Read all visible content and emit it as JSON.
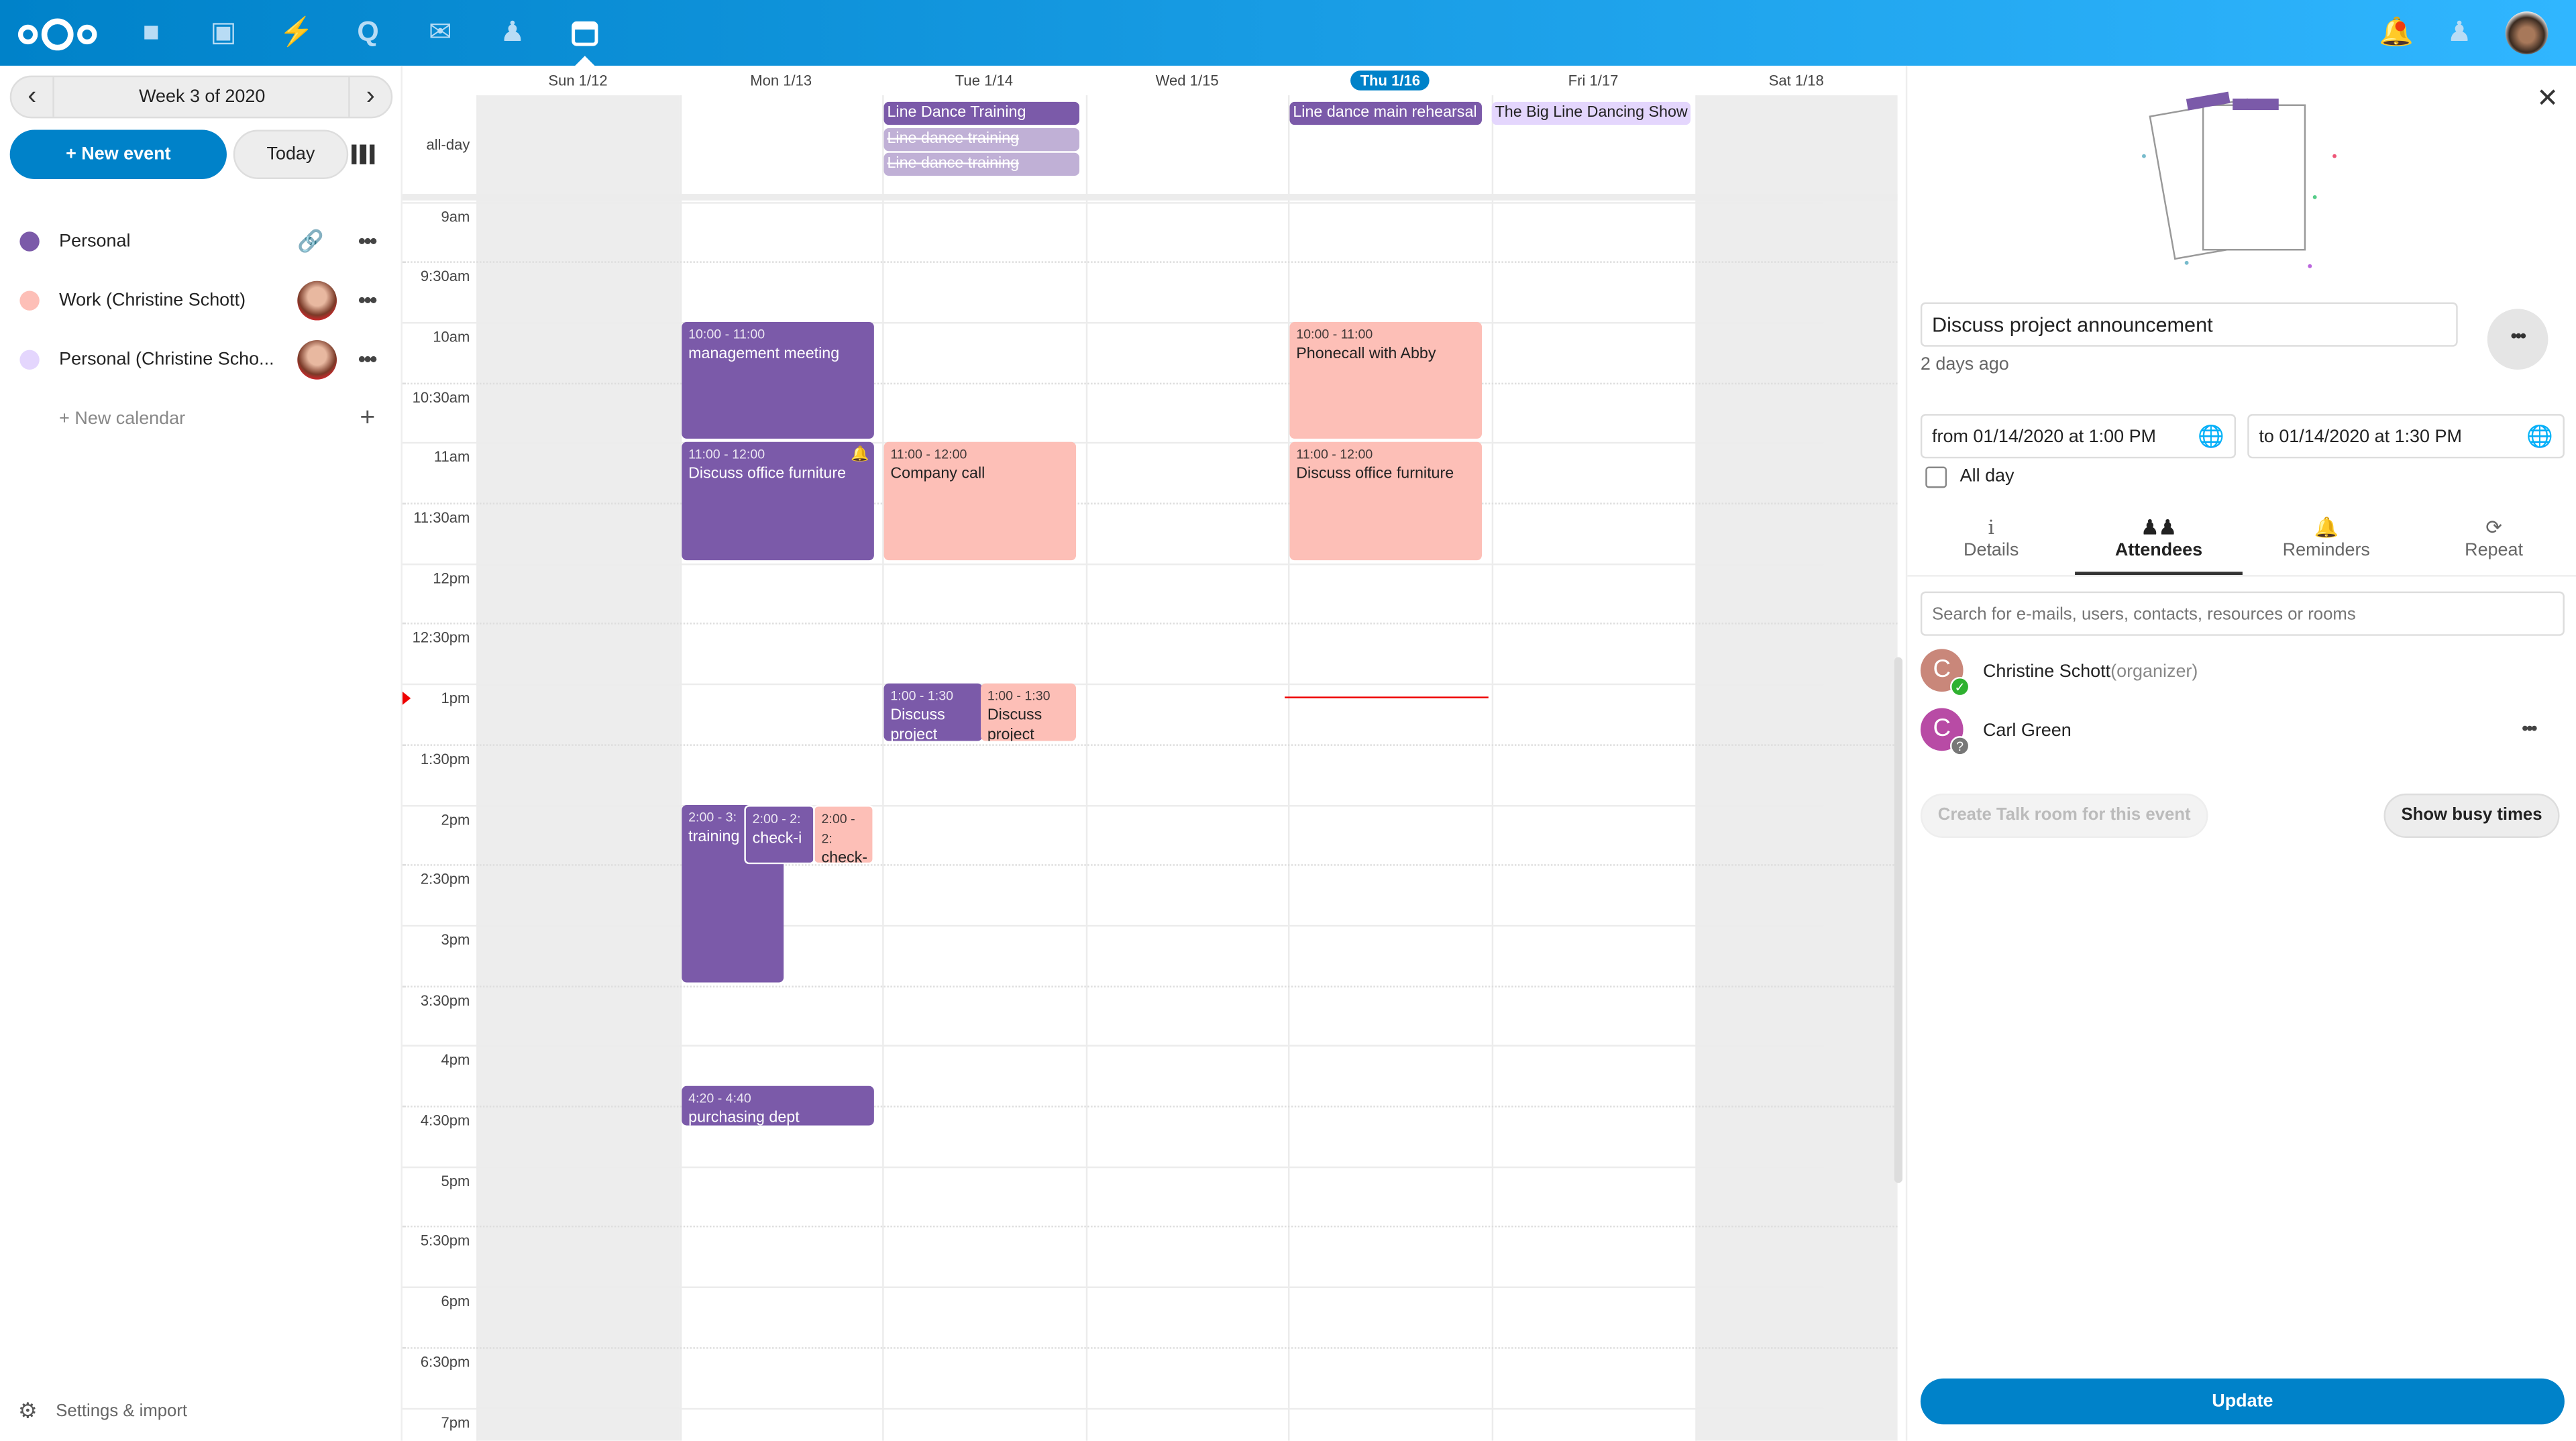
{
  "topbar": {
    "apps": [
      "files-icon",
      "photos-icon",
      "activity-icon",
      "talk-icon",
      "mail-icon",
      "contacts-icon",
      "calendar-icon"
    ],
    "brand_color": "#0082c9"
  },
  "sidebar": {
    "week_label": "Week 3 of 2020",
    "new_event": "+ New event",
    "today": "Today",
    "calendars": [
      {
        "name": "Personal",
        "color": "#7b5aa9"
      },
      {
        "name": "Work (Christine Schott)",
        "color": "#fdbfb7"
      },
      {
        "name": "Personal (Christine Scho...",
        "color": "#e4d6fd"
      }
    ],
    "new_calendar": "+ New calendar",
    "settings": "Settings & import"
  },
  "calendar": {
    "days": [
      "Sun 1/12",
      "Mon 1/13",
      "Tue 1/14",
      "Wed 1/15",
      "Thu 1/16",
      "Fri 1/17",
      "Sat 1/18"
    ],
    "today_index": 4,
    "allday_label": "all-day",
    "times": [
      "9am",
      "9:30am",
      "10am",
      "10:30am",
      "11am",
      "11:30am",
      "12pm",
      "12:30pm",
      "1pm",
      "1:30pm",
      "2pm",
      "2:30pm",
      "3pm",
      "3:30pm",
      "4pm",
      "4:30pm",
      "5pm",
      "5:30pm",
      "6pm",
      "6:30pm",
      "7pm"
    ],
    "allday_events": [
      {
        "day": "Tue 1/14",
        "title": "Line Dance Training"
      },
      {
        "day": "Tue 1/14",
        "title": "Line dance training",
        "cancelled": true
      },
      {
        "day": "Tue 1/14",
        "title": "Line dance training",
        "cancelled": true
      },
      {
        "day": "Thu 1/16",
        "title": "Line dance main rehearsal"
      },
      {
        "day": "Fri 1/17",
        "title": "The Big Line Dancing Show"
      }
    ],
    "events": [
      {
        "day": "Mon 1/13",
        "time": "10:00 - 11:00",
        "title": "management meeting"
      },
      {
        "day": "Mon 1/13",
        "time": "11:00 - 12:00",
        "title": "Discuss office furniture",
        "reminder": true
      },
      {
        "day": "Mon 1/13",
        "time": "2:00 - 3:",
        "title": "training"
      },
      {
        "day": "Mon 1/13",
        "time": "2:00 - 2:",
        "title": "check-i"
      },
      {
        "day": "Mon 1/13",
        "time": "2:00 - 2:",
        "title": "check-in"
      },
      {
        "day": "Mon 1/13",
        "time": "4:20 - 4:40",
        "title": "purchasing dept"
      },
      {
        "day": "Tue 1/14",
        "time": "11:00 - 12:00",
        "title": "Company call"
      },
      {
        "day": "Tue 1/14",
        "time": "1:00 - 1:30",
        "title": "Discuss project announcement"
      },
      {
        "day": "Tue 1/14",
        "time": "1:00 - 1:30",
        "title": "Discuss project"
      },
      {
        "day": "Thu 1/16",
        "time": "10:00 - 11:00",
        "title": "Phonecall with Abby"
      },
      {
        "day": "Thu 1/16",
        "time": "11:00 - 12:00",
        "title": "Discuss office furniture"
      }
    ]
  },
  "panel": {
    "title": "Discuss project announcement",
    "modified": "2 days ago",
    "from": "from 01/14/2020 at 1:00 PM",
    "to": "to 01/14/2020 at 1:30 PM",
    "all_day": "All day",
    "all_day_checked": false,
    "tabs": [
      "Details",
      "Attendees",
      "Reminders",
      "Repeat"
    ],
    "active_tab": "Attendees",
    "search_placeholder": "Search for e-mails, users, contacts, resources or rooms",
    "attendees": [
      {
        "initial": "C",
        "name": "Christine Schott",
        "role": "(organizer)",
        "status": "accepted",
        "color": "#c9877a"
      },
      {
        "initial": "C",
        "name": "Carl Green",
        "status": "unknown",
        "color": "#b84ba5"
      }
    ],
    "talk_button": "Create Talk room for this event",
    "busy_button": "Show busy times",
    "update_button": "Update"
  }
}
